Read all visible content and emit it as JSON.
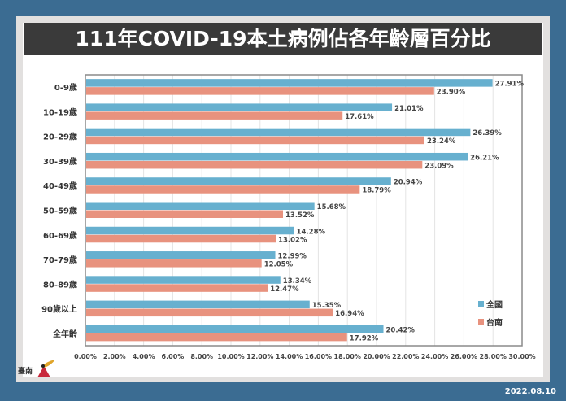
{
  "title": "111年COVID-19本土病例佔各年齡層百分比",
  "date": "2022.08.10",
  "logo_text": "臺南",
  "chart_data": {
    "type": "bar",
    "orientation": "horizontal",
    "title": "111年COVID-19本土病例佔各年齡層百分比",
    "categories": [
      "0-9歲",
      "10-19歲",
      "20-29歲",
      "30-39歲",
      "40-49歲",
      "50-59歲",
      "60-69歲",
      "70-79歲",
      "80-89歲",
      "90歲以上",
      "全年齡"
    ],
    "series": [
      {
        "name": "全國",
        "color": "#67b0cf",
        "values": [
          27.91,
          21.01,
          26.39,
          26.21,
          20.94,
          15.68,
          14.28,
          12.99,
          13.34,
          15.35,
          20.42
        ],
        "labels": [
          "27.91%",
          "21.01%",
          "26.39%",
          "26.21%",
          "20.94%",
          "15.68%",
          "14.28%",
          "12.99%",
          "13.34%",
          "15.35%",
          "20.42%"
        ]
      },
      {
        "name": "台南",
        "color": "#e8927e",
        "values": [
          23.9,
          17.61,
          23.24,
          23.09,
          18.79,
          13.52,
          13.02,
          12.05,
          12.47,
          16.94,
          17.92
        ],
        "labels": [
          "23.90%",
          "17.61%",
          "23.24%",
          "23.09%",
          "18.79%",
          "13.52%",
          "13.02%",
          "12.05%",
          "12.47%",
          "16.94%",
          "17.92%"
        ]
      }
    ],
    "xlim": [
      0,
      30
    ],
    "xticks": [
      "0.00%",
      "2.00%",
      "4.00%",
      "6.00%",
      "8.00%",
      "10.00%",
      "12.00%",
      "14.00%",
      "16.00%",
      "18.00%",
      "20.00%",
      "22.00%",
      "24.00%",
      "26.00%",
      "28.00%",
      "30.00%"
    ],
    "grid": true,
    "legend_position": "bottom-right"
  }
}
